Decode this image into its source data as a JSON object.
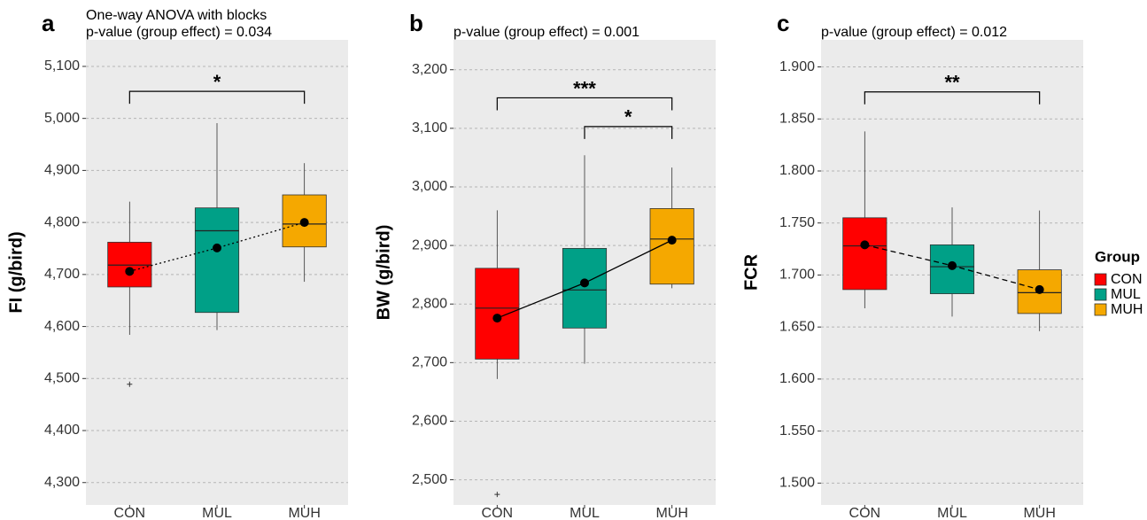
{
  "chart_data": [
    {
      "type": "box",
      "panel": "a",
      "subtitle": [
        "One-way ANOVA with blocks",
        "p-value (group effect) = 0.034"
      ],
      "ylabel": "FI (g/bird)",
      "categories": [
        "CON",
        "MUL",
        "MUH"
      ],
      "ylim": [
        4257,
        5151
      ],
      "yticks": [
        {
          "value": 4300,
          "label": "4,300"
        },
        {
          "value": 4400,
          "label": "4,400"
        },
        {
          "value": 4500,
          "label": "4,500"
        },
        {
          "value": 4600,
          "label": "4,600"
        },
        {
          "value": 4700,
          "label": "4,700"
        },
        {
          "value": 4800,
          "label": "4,800"
        },
        {
          "value": 4900,
          "label": "4,900"
        },
        {
          "value": 5000,
          "label": "5,000"
        },
        {
          "value": 5100,
          "label": "5,100"
        }
      ],
      "grid": true,
      "mean_line": "dotted",
      "boxes": [
        {
          "whisker_low": 4584,
          "q1": 4676,
          "median": 4718,
          "q3": 4762,
          "whisker_high": 4840,
          "mean": 4706,
          "outliers": [
            4489
          ]
        },
        {
          "whisker_low": 4593,
          "q1": 4627,
          "median": 4784,
          "q3": 4828,
          "whisker_high": 4991,
          "mean": 4751,
          "outliers": []
        },
        {
          "whisker_low": 4686,
          "q1": 4753,
          "median": 4797,
          "q3": 4853,
          "whisker_high": 4914,
          "mean": 4800,
          "outliers": []
        }
      ],
      "brackets": [
        {
          "from": "CON",
          "to": "MUH",
          "y": 5052,
          "label": "*"
        }
      ]
    },
    {
      "type": "box",
      "panel": "b",
      "subtitle": [
        "p-value (group effect) = 0.001"
      ],
      "ylabel": "BW (g/bird)",
      "categories": [
        "CON",
        "MUL",
        "MUH"
      ],
      "ylim": [
        2457,
        3251
      ],
      "yticks": [
        {
          "value": 2400,
          "label": "2,400"
        },
        {
          "value": 2500,
          "label": "2,500"
        },
        {
          "value": 2600,
          "label": "2,600"
        },
        {
          "value": 2700,
          "label": "2,700"
        },
        {
          "value": 2800,
          "label": "2,800"
        },
        {
          "value": 2900,
          "label": "2,900"
        },
        {
          "value": 3000,
          "label": "3,000"
        },
        {
          "value": 3100,
          "label": "3,100"
        },
        {
          "value": 3200,
          "label": "3,200"
        }
      ],
      "grid": true,
      "mean_line": "solid",
      "boxes": [
        {
          "whisker_low": 2672,
          "q1": 2706,
          "median": 2793,
          "q3": 2861,
          "whisker_high": 2960,
          "mean": 2776,
          "outliers": [
            2475
          ]
        },
        {
          "whisker_low": 2698,
          "q1": 2759,
          "median": 2824,
          "q3": 2895,
          "whisker_high": 3054,
          "mean": 2836,
          "outliers": []
        },
        {
          "whisker_low": 2827,
          "q1": 2834,
          "median": 2911,
          "q3": 2963,
          "whisker_high": 3033,
          "mean": 2909,
          "outliers": []
        }
      ],
      "brackets": [
        {
          "from": "CON",
          "to": "MUH",
          "y": 3152,
          "label": "***"
        },
        {
          "from": "MUL",
          "to": "MUH",
          "y": 3103,
          "label": "*"
        }
      ]
    },
    {
      "type": "box",
      "panel": "c",
      "subtitle": [
        "p-value (group effect) = 0.012"
      ],
      "ylabel": "FCR",
      "categories": [
        "CON",
        "MUL",
        "MUH"
      ],
      "ylim": [
        1.479,
        1.926
      ],
      "yticks": [
        {
          "value": 1.5,
          "label": "1.500"
        },
        {
          "value": 1.55,
          "label": "1.550"
        },
        {
          "value": 1.6,
          "label": "1.600"
        },
        {
          "value": 1.65,
          "label": "1.650"
        },
        {
          "value": 1.7,
          "label": "1.700"
        },
        {
          "value": 1.75,
          "label": "1.750"
        },
        {
          "value": 1.8,
          "label": "1.800"
        },
        {
          "value": 1.85,
          "label": "1.850"
        },
        {
          "value": 1.9,
          "label": "1.900"
        }
      ],
      "grid": true,
      "mean_line": "dashed",
      "boxes": [
        {
          "whisker_low": 1.668,
          "q1": 1.686,
          "median": 1.728,
          "q3": 1.755,
          "whisker_high": 1.838,
          "mean": 1.729,
          "outliers": []
        },
        {
          "whisker_low": 1.66,
          "q1": 1.682,
          "median": 1.708,
          "q3": 1.729,
          "whisker_high": 1.765,
          "mean": 1.709,
          "outliers": []
        },
        {
          "whisker_low": 1.646,
          "q1": 1.663,
          "median": 1.683,
          "q3": 1.705,
          "whisker_high": 1.762,
          "mean": 1.686,
          "outliers": []
        }
      ],
      "brackets": [
        {
          "from": "CON",
          "to": "MUH",
          "y": 1.876,
          "label": "**"
        }
      ]
    }
  ],
  "legend": {
    "title": "Group",
    "items": [
      {
        "name": "CON",
        "color": "#ff0000"
      },
      {
        "name": "MUL",
        "color": "#00a087"
      },
      {
        "name": "MUH",
        "color": "#f5a800"
      }
    ]
  }
}
